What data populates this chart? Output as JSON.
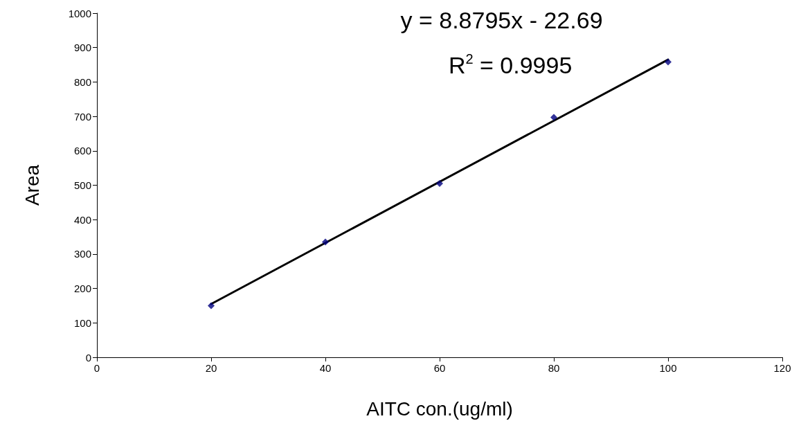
{
  "chart_data": {
    "type": "scatter",
    "xlabel": "AITC con.(ug/ml)",
    "ylabel": "Area",
    "annotations": [
      "y = 8.8795x - 22.69",
      "R$^{2}$ = 0.9995"
    ],
    "series": [
      {
        "color": "#000080",
        "marker": "diamond",
        "x": [
          20,
          40,
          60,
          80,
          100
        ],
        "values": [
          150,
          335,
          505,
          697,
          858
        ]
      },
      {
        "type": "line",
        "color": "#000000",
        "marker": "none",
        "line_style": "solid",
        "x": [
          20,
          100
        ],
        "values": [
          155,
          865
        ]
      }
    ],
    "xlim": [
      0,
      120
    ],
    "xticks": [
      0,
      20,
      40,
      60,
      80,
      100,
      120
    ],
    "ylim": [
      0,
      1000
    ],
    "yticks": [
      0,
      100,
      200,
      300,
      400,
      500,
      600,
      700,
      800,
      900,
      1000
    ],
    "grid": false
  }
}
